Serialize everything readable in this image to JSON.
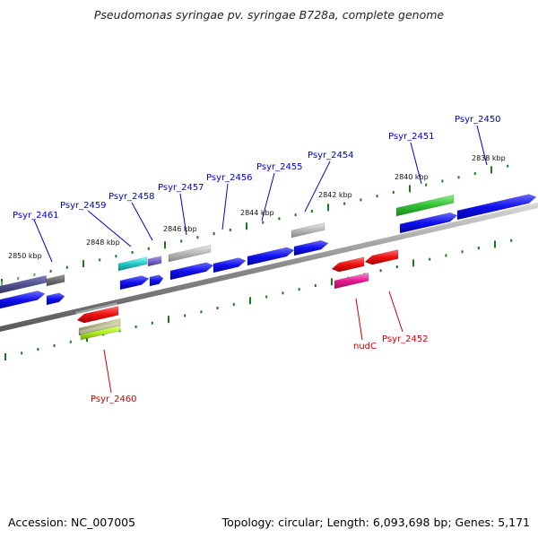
{
  "title": "Pseudomonas syringae pv. syringae B728a, complete genome",
  "footer": {
    "accession": "Accession: NC_007005",
    "topology": "Topology: circular; Length: 6,093,698 bp; Genes: 5,171"
  },
  "tick_labels": [
    "2850 kbp",
    "2848 kbp",
    "2846 kbp",
    "2844 kbp",
    "2842 kbp",
    "2840 kbp",
    "2838 kbp"
  ],
  "genes": {
    "forward": [
      "Psyr_2461",
      "Psyr_2459",
      "Psyr_2458",
      "Psyr_2457",
      "Psyr_2456",
      "Psyr_2455",
      "Psyr_2454",
      "Psyr_2451",
      "Psyr_2450"
    ],
    "reverse": [
      "Psyr_2460",
      "nudC",
      "Psyr_2452"
    ]
  },
  "colors": {
    "forward_label": "#0000cc",
    "reverse_label": "#cc0000",
    "tick": "#1a7a1a",
    "backbone": "#888888",
    "blue_arrow": "#1a1aee",
    "red_arrow": "#ee1a1a"
  }
}
